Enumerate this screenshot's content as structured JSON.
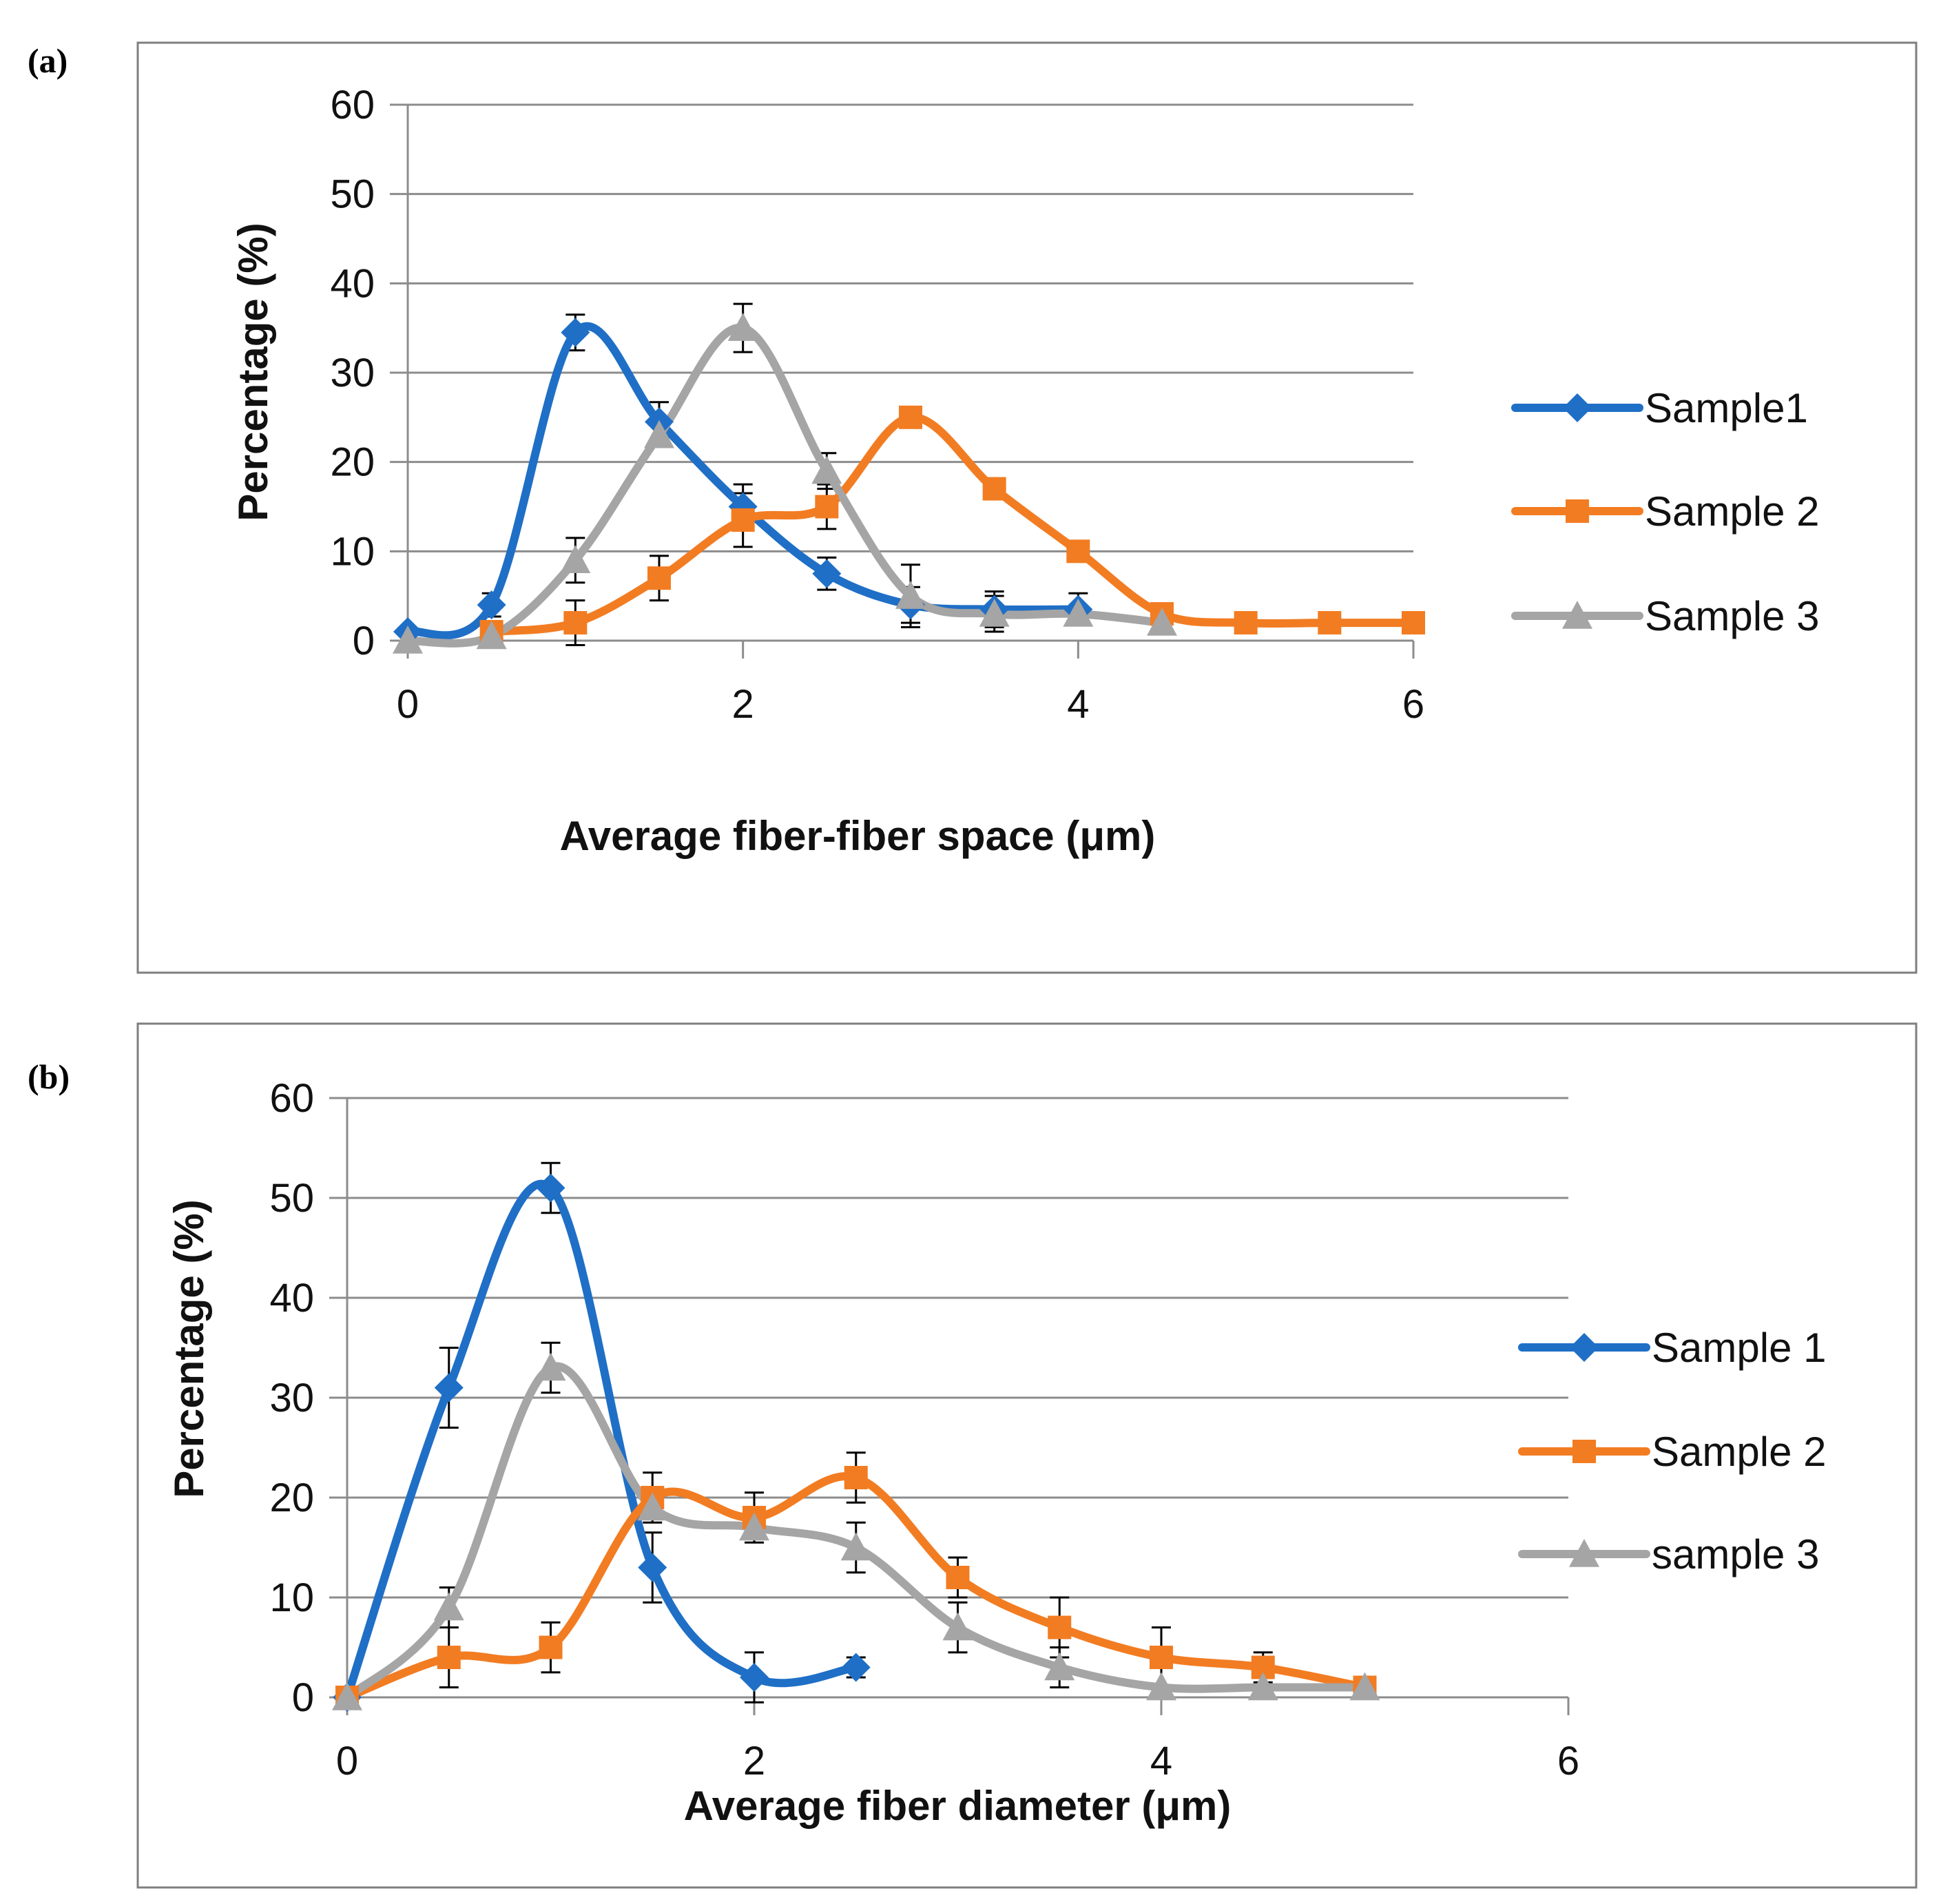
{
  "chart_data": [
    {
      "panel": "(a)",
      "type": "line",
      "xlabel": "Average fiber-fiber space (μm)",
      "ylabel": "Percentage (%)",
      "xlim": [
        0,
        6
      ],
      "ylim": [
        0,
        60
      ],
      "xticks": [
        "0",
        "2",
        "4",
        "6"
      ],
      "yticks": [
        "0",
        "10",
        "20",
        "30",
        "40",
        "50",
        "60"
      ],
      "grid": true,
      "legend": "right",
      "series": [
        {
          "name": "Sample1",
          "color": "#1f6fc6",
          "marker": "diamond",
          "x": [
            0,
            0.5,
            1,
            1.5,
            2,
            2.5,
            3,
            3.5,
            4
          ],
          "y": [
            1,
            4,
            34.5,
            24.5,
            15,
            7.5,
            4,
            3.5,
            3.5
          ],
          "err": [
            0,
            1.3,
            2,
            2.2,
            2.5,
            1.8,
            2,
            2,
            1.8
          ]
        },
        {
          "name": "Sample 2",
          "color": "#f27c22",
          "marker": "square",
          "x": [
            0.5,
            1,
            1.5,
            2,
            2.5,
            3,
            3.5,
            4,
            4.5,
            5,
            5.5,
            6
          ],
          "y": [
            1,
            2,
            7,
            13.5,
            15,
            25,
            17,
            10,
            3,
            2,
            2,
            2
          ],
          "err": [
            0,
            2.5,
            2.5,
            3,
            2.5,
            0,
            1,
            0,
            0,
            0,
            0,
            0
          ]
        },
        {
          "name": "Sample 3",
          "color": "#a5a5a5",
          "marker": "triangle",
          "x": [
            0,
            0.5,
            1,
            1.5,
            2,
            2.5,
            3,
            3.5,
            4,
            4.5
          ],
          "y": [
            0,
            0.5,
            9,
            23,
            35,
            19,
            5,
            3,
            3,
            2
          ],
          "err": [
            0,
            0,
            2.5,
            0,
            2.7,
            2,
            3.5,
            2,
            0,
            0
          ]
        }
      ]
    },
    {
      "panel": "(b)",
      "type": "line",
      "xlabel": "Average fiber diameter (μm)",
      "ylabel": "Percentage (%)",
      "xlim": [
        0,
        6
      ],
      "ylim": [
        0,
        60
      ],
      "xticks": [
        "0",
        "2",
        "4",
        "6"
      ],
      "yticks": [
        "0",
        "10",
        "20",
        "30",
        "40",
        "50",
        "60"
      ],
      "grid": true,
      "legend": "right",
      "series": [
        {
          "name": "Sample 1",
          "color": "#1f6fc6",
          "marker": "diamond",
          "x": [
            0,
            0.5,
            1,
            1.5,
            2,
            2.5
          ],
          "y": [
            0,
            31,
            51,
            13,
            2,
            3
          ],
          "err": [
            0,
            4,
            2.5,
            3.5,
            2.5,
            1
          ]
        },
        {
          "name": "Sample 2",
          "color": "#f27c22",
          "marker": "square",
          "x": [
            0,
            0.5,
            1,
            1.5,
            2,
            2.5,
            3,
            3.5,
            4,
            4.5,
            5
          ],
          "y": [
            0,
            4,
            5,
            20,
            18,
            22,
            12,
            7,
            4,
            3,
            1
          ],
          "err": [
            0,
            3,
            2.5,
            2.5,
            2.5,
            2.5,
            2,
            3,
            3,
            1.5,
            0
          ]
        },
        {
          "name": "sample 3",
          "color": "#a5a5a5",
          "marker": "triangle",
          "x": [
            0,
            0.5,
            1,
            1.5,
            2,
            2.5,
            3,
            3.5,
            4,
            4.5,
            5
          ],
          "y": [
            0,
            9,
            33,
            19,
            17,
            15,
            7,
            3,
            1,
            1,
            1
          ],
          "err": [
            0,
            2,
            2.5,
            0,
            0,
            2.5,
            2.5,
            2,
            0,
            0,
            0
          ]
        }
      ]
    }
  ]
}
